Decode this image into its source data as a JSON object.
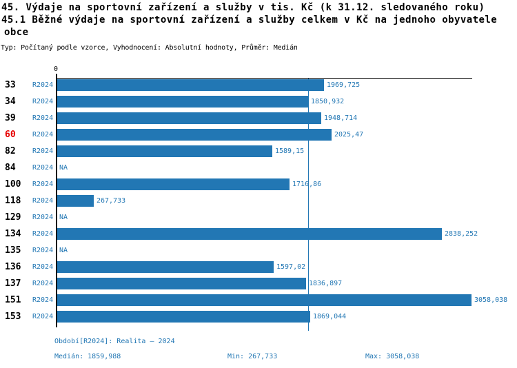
{
  "header": {
    "title": "45. Výdaje na sportovní zařízení a služby v tis. Kč (k 31.12. sledovaného roku)",
    "subtitle_line1": "45.1 Běžné výdaje na sportovní zařízení a služby celkem v Kč na jednoho obyvatele",
    "subtitle_line2": "obce",
    "meta": "Typ: Počítaný podle vzorce, Vyhodnocení: Absolutní hodnoty, Průměr: Medián"
  },
  "chart_data": {
    "type": "bar",
    "orientation": "horizontal",
    "title": "45. Výdaje na sportovní zařízení a služby v tis. Kč (k 31.12. sledovaného roku)",
    "subtitle": "45.1 Běžné výdaje na sportovní zařízení a služby celkem v Kč na jednoho obyvatele obce",
    "meta": "Typ: Počítaný podle vzorce, Vyhodnocení: Absolutní hodnoty, Průměr: Medián",
    "series_name": "R2024",
    "categories": [
      "33",
      "34",
      "39",
      "60",
      "82",
      "84",
      "100",
      "118",
      "129",
      "134",
      "135",
      "136",
      "137",
      "151",
      "153"
    ],
    "values": [
      1969.725,
      1850.932,
      1948.714,
      2025.47,
      1589.15,
      null,
      1716.86,
      267.733,
      null,
      2838.252,
      null,
      1597.02,
      1836.897,
      3058.038,
      1869.044
    ],
    "value_labels": [
      "1969,725",
      "1850,932",
      "1948,714",
      "2025,47",
      "1589,15",
      "NA",
      "1716,86",
      "267,733",
      "NA",
      "2838,252",
      "NA",
      "1597,02",
      "1836,897",
      "3058,038",
      "1869,044"
    ],
    "na_label": "NA",
    "highlighted_category": "60",
    "x_zero_label": "0",
    "xlim": [
      0,
      3058.038
    ],
    "grid": false,
    "median_line": true,
    "median_value": 1859.988,
    "stats": {
      "median": 1859.988,
      "min": 267.733,
      "max": 3058.038
    },
    "colors": {
      "bar": "#2277b4",
      "blue_text": "#2277b4",
      "highlight_text": "#e60000",
      "axis": "#000000"
    }
  },
  "footer": {
    "period_label": "Období[R2024]: Realita – 2024",
    "median_label": "Medián: 1859,988",
    "min_label": "Min: 267,733",
    "max_label": "Max: 3058,038"
  }
}
